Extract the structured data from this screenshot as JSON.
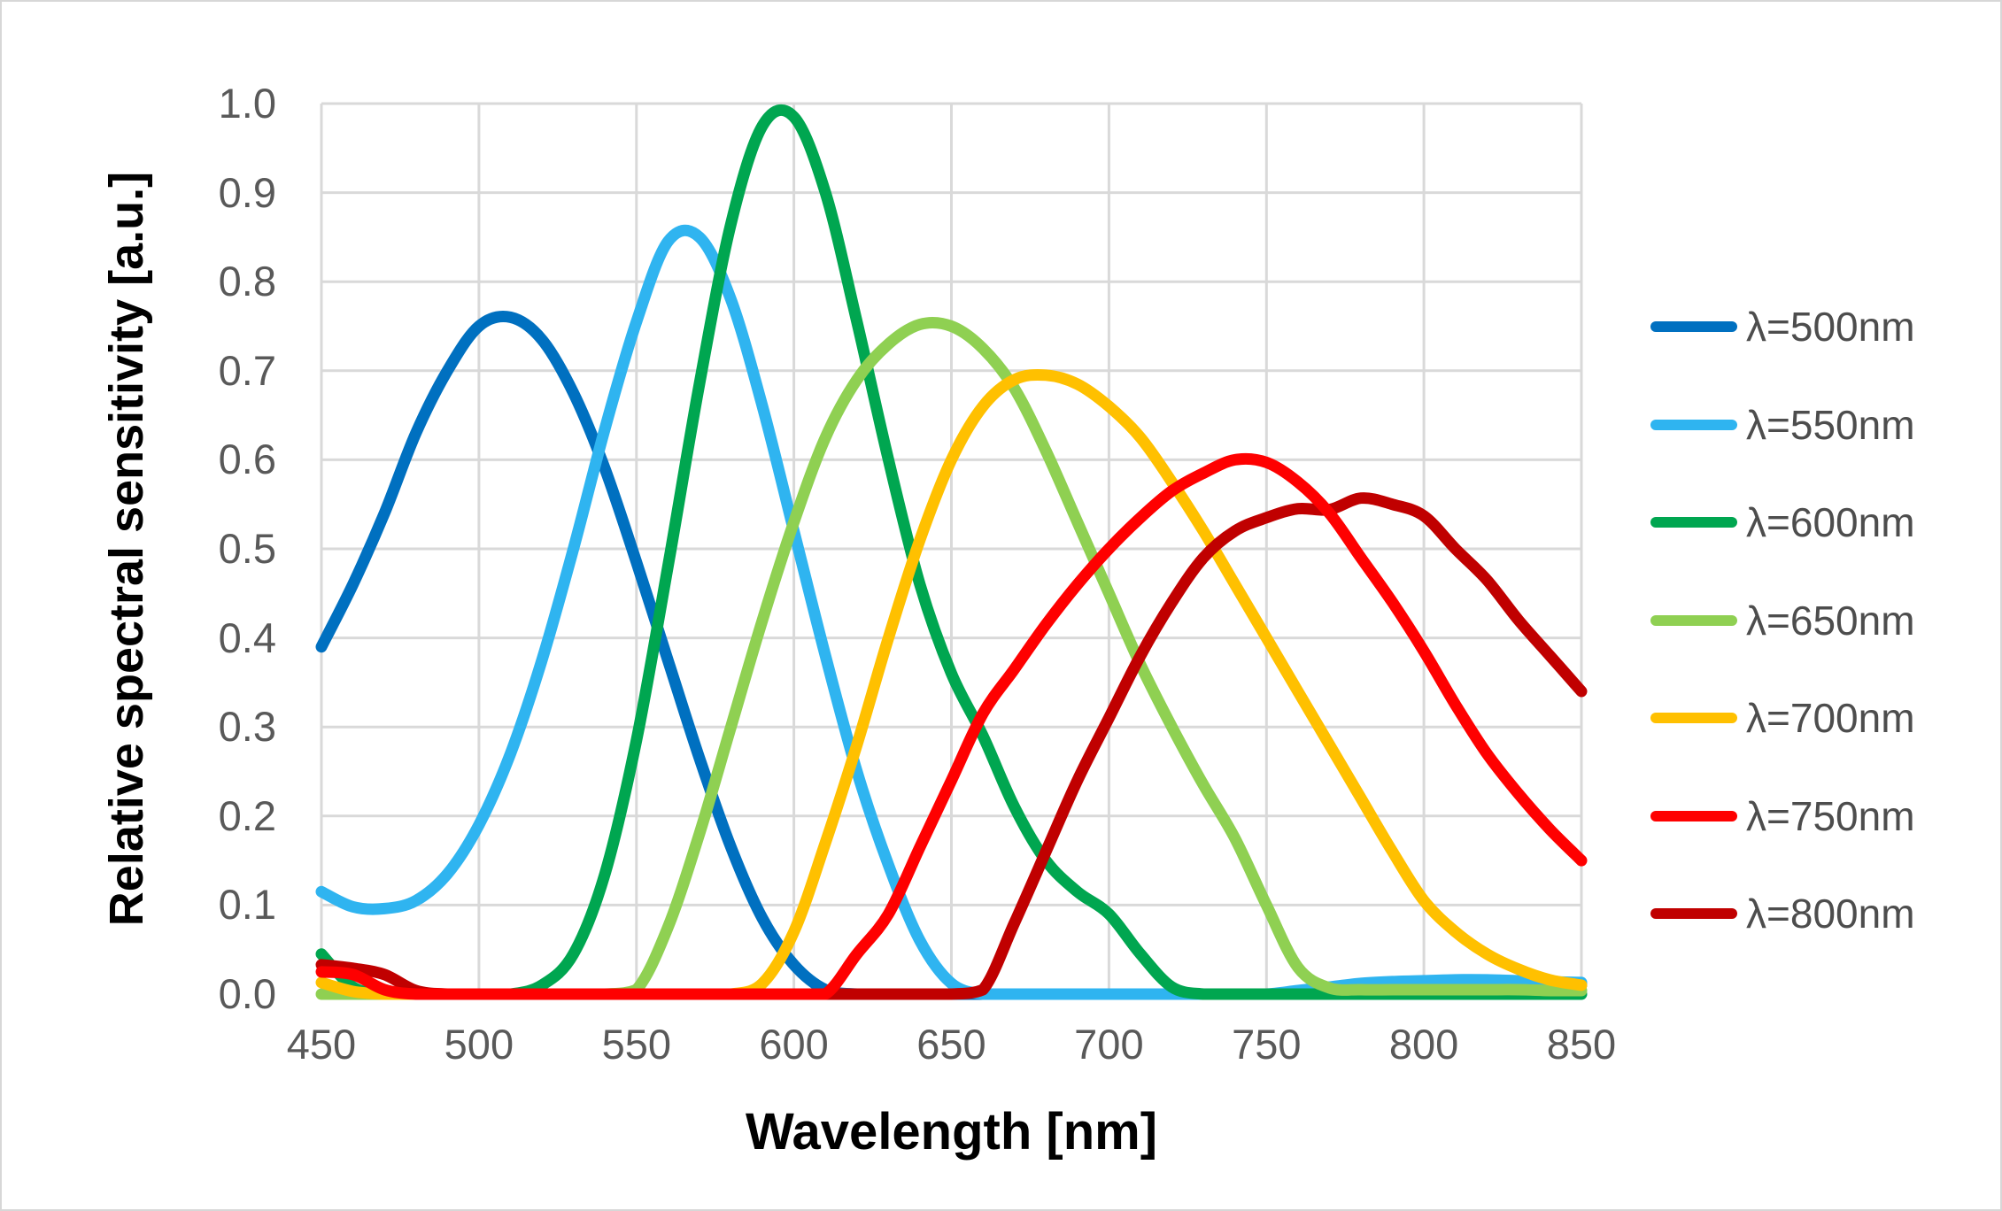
{
  "window": {
    "background": "#ffffff",
    "border_color": "#d7d7d7"
  },
  "styles": {
    "gridline_color": "#d9d9d9",
    "axis_line_color": "#bfbfbf",
    "tick_label_color": "#595959",
    "legend_text_color": "#4d4d4d",
    "axis_title_color": "#000000",
    "curve_stroke_width": 13
  },
  "axes": {
    "x": {
      "title": "Wavelength [nm]",
      "tick_labels": [
        "450",
        "500",
        "550",
        "600",
        "650",
        "700",
        "750",
        "800",
        "850"
      ]
    },
    "y": {
      "title": "Relative spectral sensitivity [a.u.]",
      "tick_labels": [
        "0.0",
        "0.1",
        "0.2",
        "0.3",
        "0.4",
        "0.5",
        "0.6",
        "0.7",
        "0.8",
        "0.9",
        "1.0"
      ]
    }
  },
  "chart_data": {
    "type": "line",
    "title": "",
    "xlabel": "Wavelength [nm]",
    "ylabel": "Relative spectral sensitivity [a.u.]",
    "xlim": [
      450,
      850
    ],
    "ylim": [
      0.0,
      1.0
    ],
    "x_tick_step": 50,
    "y_tick_step": 0.1,
    "grid": true,
    "legend_position": "right",
    "x": [
      450,
      460,
      470,
      480,
      490,
      500,
      510,
      520,
      530,
      540,
      550,
      560,
      570,
      580,
      590,
      600,
      610,
      620,
      630,
      640,
      650,
      660,
      670,
      680,
      690,
      700,
      710,
      720,
      730,
      740,
      750,
      760,
      770,
      780,
      790,
      800,
      810,
      820,
      830,
      840,
      850
    ],
    "series": [
      {
        "name": "λ=500nm",
        "color": "#0070C0",
        "peak": {
          "x": 507,
          "y": 0.76
        },
        "values": [
          0.39,
          0.46,
          0.54,
          0.63,
          0.7,
          0.75,
          0.76,
          0.735,
          0.675,
          0.59,
          0.485,
          0.375,
          0.265,
          0.165,
          0.085,
          0.033,
          0.005,
          0,
          0,
          0,
          0,
          0,
          0,
          0,
          0,
          0,
          0,
          0,
          0,
          0,
          0,
          0,
          0.002,
          0.005,
          0.007,
          0.008,
          0.009,
          0.01,
          0.01,
          0.01,
          0.01
        ]
      },
      {
        "name": "λ=550nm",
        "color": "#2FB4F0",
        "peak": {
          "x": 565,
          "y": 0.855
        },
        "values": [
          0.115,
          0.098,
          0.096,
          0.105,
          0.135,
          0.19,
          0.27,
          0.375,
          0.5,
          0.635,
          0.755,
          0.845,
          0.85,
          0.78,
          0.66,
          0.52,
          0.38,
          0.25,
          0.145,
          0.06,
          0.012,
          0,
          0,
          0,
          0,
          0,
          0,
          0,
          0,
          0,
          0,
          0.004,
          0.008,
          0.012,
          0.014,
          0.015,
          0.016,
          0.016,
          0.015,
          0.014,
          0.013
        ]
      },
      {
        "name": "λ=600nm",
        "color": "#00A650",
        "peak": {
          "x": 595,
          "y": 0.99
        },
        "values": [
          0.045,
          0.008,
          0,
          0,
          0,
          0,
          0,
          0.01,
          0.045,
          0.135,
          0.285,
          0.48,
          0.685,
          0.865,
          0.975,
          0.985,
          0.9,
          0.755,
          0.6,
          0.46,
          0.36,
          0.29,
          0.21,
          0.15,
          0.115,
          0.09,
          0.045,
          0.008,
          0,
          0,
          0,
          0,
          0,
          0,
          0,
          0,
          0,
          0,
          0,
          0,
          0
        ]
      },
      {
        "name": "λ=650nm",
        "color": "#8FD052",
        "peak": {
          "x": 645,
          "y": 0.755
        },
        "values": [
          0,
          0,
          0,
          0,
          0,
          0,
          0,
          0,
          0,
          0,
          0.005,
          0.075,
          0.18,
          0.3,
          0.42,
          0.53,
          0.625,
          0.69,
          0.73,
          0.752,
          0.75,
          0.725,
          0.68,
          0.61,
          0.53,
          0.45,
          0.37,
          0.3,
          0.235,
          0.175,
          0.1,
          0.03,
          0.007,
          0.005,
          0.005,
          0.005,
          0.005,
          0.005,
          0.005,
          0.004,
          0.004
        ]
      },
      {
        "name": "λ=700nm",
        "color": "#FFC000",
        "peak": {
          "x": 680,
          "y": 0.695
        },
        "values": [
          0.013,
          0.003,
          0,
          0,
          0,
          0,
          0,
          0,
          0,
          0,
          0,
          0,
          0,
          0,
          0.012,
          0.07,
          0.17,
          0.28,
          0.4,
          0.51,
          0.6,
          0.66,
          0.69,
          0.695,
          0.685,
          0.66,
          0.625,
          0.575,
          0.52,
          0.46,
          0.4,
          0.34,
          0.28,
          0.22,
          0.16,
          0.105,
          0.07,
          0.045,
          0.028,
          0.016,
          0.01
        ]
      },
      {
        "name": "λ=750nm",
        "color": "#FE0000",
        "peak": {
          "x": 742,
          "y": 0.6
        },
        "values": [
          0.025,
          0.022,
          0.005,
          0,
          0,
          0,
          0,
          0,
          0,
          0,
          0,
          0,
          0,
          0,
          0,
          0,
          0,
          0.045,
          0.09,
          0.165,
          0.24,
          0.315,
          0.365,
          0.415,
          0.46,
          0.5,
          0.535,
          0.565,
          0.585,
          0.6,
          0.597,
          0.575,
          0.54,
          0.49,
          0.44,
          0.385,
          0.325,
          0.27,
          0.225,
          0.185,
          0.15
        ]
      },
      {
        "name": "λ=800nm",
        "color": "#C00000",
        "peak": {
          "x": 782,
          "y": 0.558
        },
        "values": [
          0.033,
          0.029,
          0.022,
          0.004,
          0,
          0,
          0,
          0,
          0,
          0,
          0,
          0,
          0,
          0,
          0,
          0,
          0,
          0,
          0,
          0,
          0,
          0.005,
          0.08,
          0.16,
          0.24,
          0.31,
          0.38,
          0.44,
          0.49,
          0.52,
          0.535,
          0.545,
          0.544,
          0.557,
          0.55,
          0.537,
          0.5,
          0.465,
          0.42,
          0.38,
          0.34
        ]
      }
    ]
  }
}
